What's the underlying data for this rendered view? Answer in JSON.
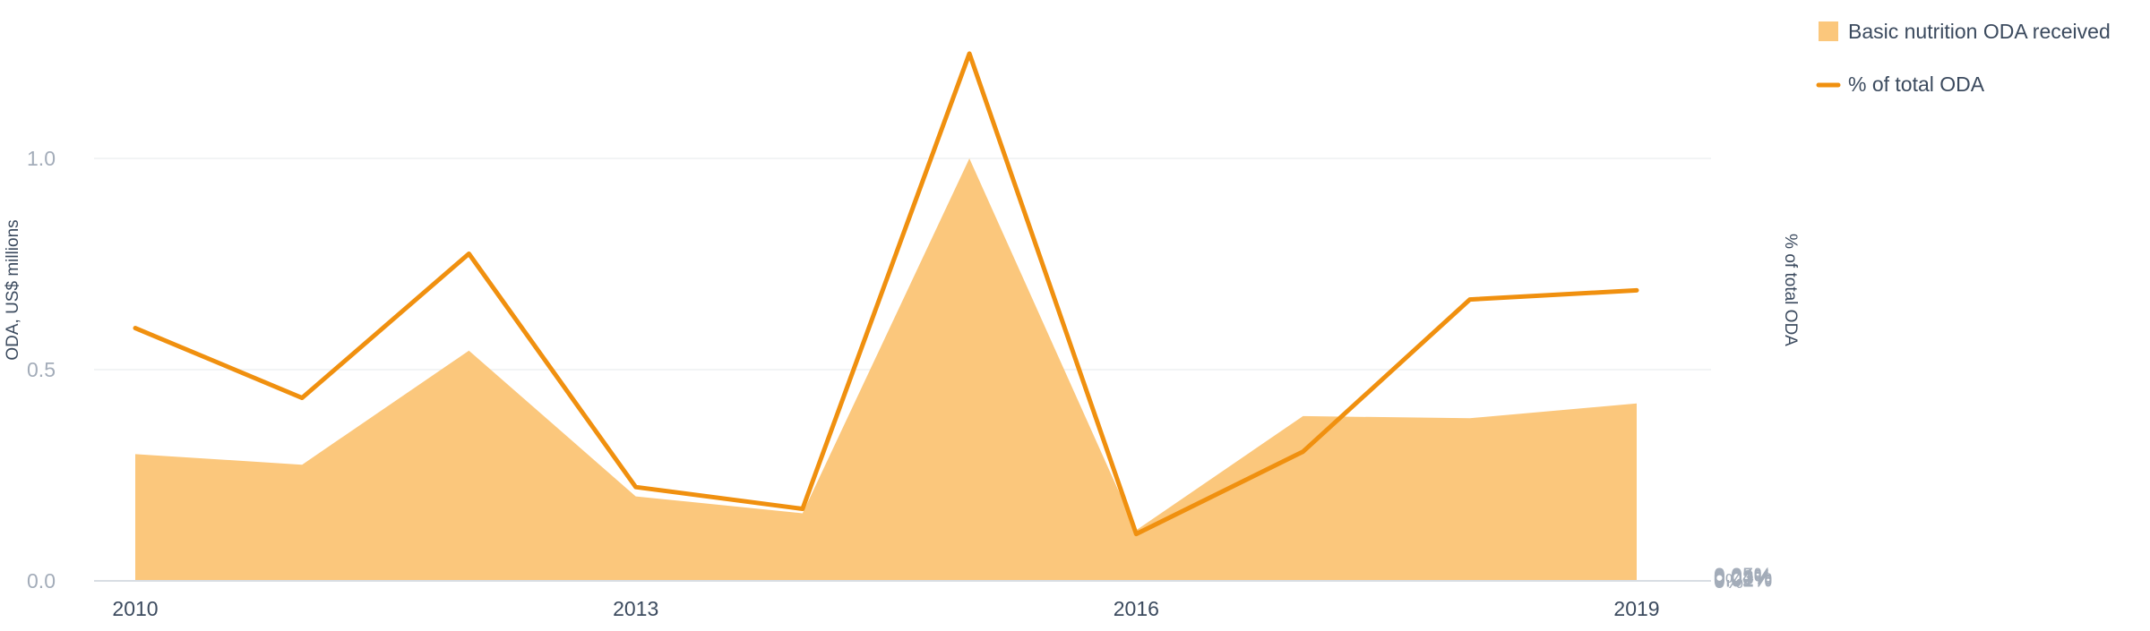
{
  "chart_data": {
    "type": "area+line",
    "title": "",
    "x": [
      2010,
      2011,
      2012,
      2013,
      2014,
      2015,
      2016,
      2017,
      2018,
      2019
    ],
    "x_ticks": [
      "2010",
      "2013",
      "2016",
      "2019"
    ],
    "ylabel_left": "ODA, US$ millions",
    "ylabel_right": "% of total ODA",
    "ylim_left": [
      0,
      1.0
    ],
    "ylim_right": [
      0,
      0.05
    ],
    "yticks_left": [
      "0.0",
      "0.5",
      "1.0"
    ],
    "yticks_right": [
      "0%",
      "0.01%",
      "0.02%",
      "0.03%",
      "0.04%",
      "0.05%"
    ],
    "grid": true,
    "legend_position": "top-right",
    "series": [
      {
        "name": "Basic nutrition ODA received",
        "type": "area",
        "axis": "left",
        "color": "#fbc77c",
        "values": [
          0.3,
          0.275,
          0.545,
          0.2,
          0.16,
          1.0,
          0.12,
          0.39,
          0.385,
          0.42
        ]
      },
      {
        "name": "% of total ODA",
        "type": "line",
        "axis": "right",
        "color": "#f0900f",
        "values": [
          0.0221,
          0.016,
          0.0286,
          0.0082,
          0.0063,
          0.0461,
          0.0041,
          0.0113,
          0.0246,
          0.0254
        ]
      }
    ]
  }
}
